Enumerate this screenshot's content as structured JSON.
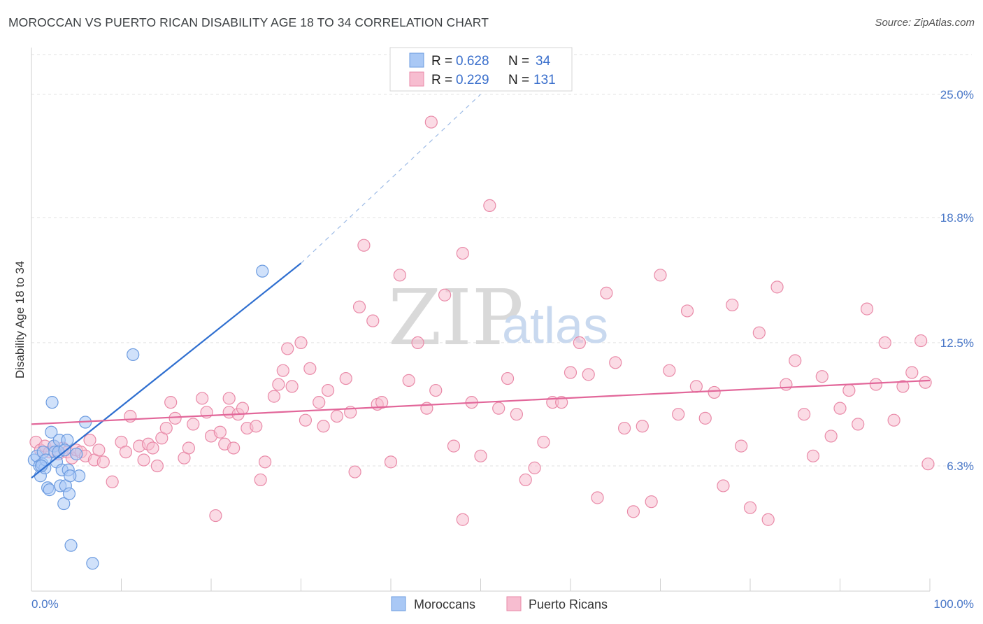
{
  "title": "MOROCCAN VS PUERTO RICAN DISABILITY AGE 18 TO 34 CORRELATION CHART",
  "source": "Source: ZipAtlas.com",
  "watermark": {
    "zip": "ZIP",
    "atlas": "atlas"
  },
  "legend_top": [
    {
      "r_label": "R = ",
      "r_value": "0.628",
      "n_label": "N = ",
      "n_value": "34",
      "color": "#a9c8f5",
      "stroke": "#6d9ce0"
    },
    {
      "r_label": "R = ",
      "r_value": "0.229",
      "n_label": "N = ",
      "n_value": "131",
      "color": "#f7bdd0",
      "stroke": "#e98aa8"
    }
  ],
  "legend_bottom": [
    {
      "label": "Moroccans",
      "color": "#a9c8f5",
      "stroke": "#6d9ce0"
    },
    {
      "label": "Puerto Ricans",
      "color": "#f7bdd0",
      "stroke": "#e98aa8"
    }
  ],
  "chart_data": {
    "type": "scatter",
    "ylabel": "Disability Age 18 to 34",
    "xlim": [
      0,
      100
    ],
    "ylim": [
      0,
      27
    ],
    "x_tick_labels": [
      "0.0%",
      "100.0%"
    ],
    "y_ticks": [
      {
        "value": 6.3,
        "label": "6.3%"
      },
      {
        "value": 12.5,
        "label": "12.5%"
      },
      {
        "value": 18.8,
        "label": "18.8%"
      },
      {
        "value": 25.0,
        "label": "25.0%"
      }
    ],
    "grid": true,
    "series": [
      {
        "name": "Moroccans",
        "color": "#6d9ce0",
        "fill": "#a9c8f5",
        "trend": {
          "x0": 0,
          "y0": 5.7,
          "x1": 30,
          "y1": 16.5,
          "dash_x1": 50,
          "dash_y1": 25
        },
        "points": [
          [
            0.3,
            6.6
          ],
          [
            0.6,
            6.8
          ],
          [
            0.9,
            6.3
          ],
          [
            1.0,
            5.8
          ],
          [
            1.2,
            6.4
          ],
          [
            1.3,
            7.0
          ],
          [
            1.5,
            6.2
          ],
          [
            1.6,
            6.6
          ],
          [
            1.8,
            5.2
          ],
          [
            2.0,
            5.1
          ],
          [
            2.2,
            8.0
          ],
          [
            2.3,
            9.5
          ],
          [
            2.5,
            7.3
          ],
          [
            2.6,
            7.0
          ],
          [
            2.8,
            6.5
          ],
          [
            3.0,
            7.0
          ],
          [
            3.1,
            7.6
          ],
          [
            3.2,
            5.3
          ],
          [
            3.4,
            6.1
          ],
          [
            3.6,
            4.4
          ],
          [
            3.8,
            5.3
          ],
          [
            4.0,
            7.6
          ],
          [
            4.1,
            6.1
          ],
          [
            4.2,
            4.9
          ],
          [
            4.4,
            2.3
          ],
          [
            5.0,
            6.9
          ],
          [
            5.3,
            5.8
          ],
          [
            6.0,
            8.5
          ],
          [
            6.8,
            1.4
          ],
          [
            3.7,
            7.1
          ],
          [
            4.3,
            5.8
          ],
          [
            1.1,
            6.3
          ],
          [
            25.7,
            16.1
          ],
          [
            11.3,
            11.9
          ]
        ]
      },
      {
        "name": "Puerto Ricans",
        "color": "#e98aa8",
        "fill": "#f7bdd0",
        "trend": {
          "x0": 0,
          "y0": 8.4,
          "x1": 100,
          "y1": 10.6
        },
        "points": [
          [
            0.5,
            7.5
          ],
          [
            1.0,
            7.1
          ],
          [
            1.5,
            7.3
          ],
          [
            2.0,
            7.0
          ],
          [
            2.5,
            7.3
          ],
          [
            3.0,
            6.9
          ],
          [
            3.5,
            7.2
          ],
          [
            4.0,
            7.0
          ],
          [
            4.5,
            6.7
          ],
          [
            5.0,
            7.1
          ],
          [
            5.5,
            7.0
          ],
          [
            6.0,
            6.8
          ],
          [
            6.5,
            7.6
          ],
          [
            7.0,
            6.6
          ],
          [
            7.5,
            7.1
          ],
          [
            8.0,
            6.5
          ],
          [
            9.0,
            5.5
          ],
          [
            10.0,
            7.5
          ],
          [
            10.5,
            7.0
          ],
          [
            11.0,
            8.8
          ],
          [
            12.0,
            7.3
          ],
          [
            12.5,
            6.6
          ],
          [
            13.0,
            7.4
          ],
          [
            13.5,
            7.2
          ],
          [
            14.0,
            6.3
          ],
          [
            14.5,
            7.7
          ],
          [
            15.0,
            8.2
          ],
          [
            15.5,
            9.5
          ],
          [
            16.0,
            8.7
          ],
          [
            17.0,
            6.7
          ],
          [
            17.5,
            7.2
          ],
          [
            18.0,
            8.4
          ],
          [
            19.0,
            9.7
          ],
          [
            19.5,
            9.0
          ],
          [
            20.0,
            7.8
          ],
          [
            21.0,
            8.0
          ],
          [
            21.5,
            7.4
          ],
          [
            22.0,
            9.0
          ],
          [
            22.5,
            7.2
          ],
          [
            23.0,
            8.9
          ],
          [
            23.5,
            9.2
          ],
          [
            24.0,
            8.2
          ],
          [
            25.0,
            8.3
          ],
          [
            25.5,
            5.6
          ],
          [
            26.0,
            6.5
          ],
          [
            27.0,
            9.8
          ],
          [
            27.5,
            10.4
          ],
          [
            28.0,
            11.1
          ],
          [
            28.5,
            12.2
          ],
          [
            29.0,
            10.3
          ],
          [
            30.0,
            12.5
          ],
          [
            30.5,
            8.6
          ],
          [
            31.0,
            11.2
          ],
          [
            32.0,
            9.5
          ],
          [
            32.5,
            8.3
          ],
          [
            33.0,
            10.1
          ],
          [
            34.0,
            8.8
          ],
          [
            35.0,
            10.7
          ],
          [
            35.5,
            9.0
          ],
          [
            36.0,
            6.0
          ],
          [
            36.5,
            14.3
          ],
          [
            37.0,
            17.4
          ],
          [
            38.0,
            13.6
          ],
          [
            38.5,
            9.4
          ],
          [
            39.0,
            9.5
          ],
          [
            40.0,
            6.5
          ],
          [
            41.0,
            15.9
          ],
          [
            42.0,
            10.6
          ],
          [
            43.0,
            12.5
          ],
          [
            44.0,
            9.2
          ],
          [
            45.0,
            10.1
          ],
          [
            46.0,
            14.9
          ],
          [
            47.0,
            7.3
          ],
          [
            48.0,
            17.0
          ],
          [
            49.0,
            9.5
          ],
          [
            50.0,
            6.8
          ],
          [
            51.0,
            19.4
          ],
          [
            52.0,
            9.2
          ],
          [
            53.0,
            10.7
          ],
          [
            54.0,
            8.9
          ],
          [
            55.0,
            5.6
          ],
          [
            56.0,
            6.2
          ],
          [
            57.0,
            7.5
          ],
          [
            58.0,
            9.5
          ],
          [
            59.0,
            9.5
          ],
          [
            60.0,
            11.0
          ],
          [
            61.0,
            12.5
          ],
          [
            62.0,
            10.9
          ],
          [
            63.0,
            4.7
          ],
          [
            64.0,
            15.0
          ],
          [
            65.0,
            11.5
          ],
          [
            66.0,
            8.2
          ],
          [
            67.0,
            4.0
          ],
          [
            68.0,
            8.3
          ],
          [
            69.0,
            4.5
          ],
          [
            70.0,
            15.9
          ],
          [
            71.0,
            11.1
          ],
          [
            72.0,
            8.9
          ],
          [
            73.0,
            14.1
          ],
          [
            74.0,
            10.3
          ],
          [
            75.0,
            8.7
          ],
          [
            76.0,
            10.0
          ],
          [
            77.0,
            5.3
          ],
          [
            78.0,
            14.4
          ],
          [
            79.0,
            7.3
          ],
          [
            80.0,
            4.2
          ],
          [
            81.0,
            13.0
          ],
          [
            82.0,
            3.6
          ],
          [
            83.0,
            15.3
          ],
          [
            84.0,
            10.4
          ],
          [
            85.0,
            11.6
          ],
          [
            86.0,
            8.9
          ],
          [
            87.0,
            6.8
          ],
          [
            88.0,
            10.8
          ],
          [
            89.0,
            7.8
          ],
          [
            90.0,
            9.2
          ],
          [
            91.0,
            10.1
          ],
          [
            92.0,
            8.4
          ],
          [
            93.0,
            14.2
          ],
          [
            94.0,
            10.4
          ],
          [
            95.0,
            12.5
          ],
          [
            96.0,
            8.6
          ],
          [
            97.0,
            10.3
          ],
          [
            98.0,
            11.0
          ],
          [
            99.0,
            12.6
          ],
          [
            99.5,
            10.5
          ],
          [
            99.8,
            6.4
          ],
          [
            22.0,
            9.7
          ],
          [
            20.5,
            3.8
          ],
          [
            44.5,
            23.6
          ],
          [
            48.0,
            3.6
          ]
        ]
      }
    ]
  }
}
